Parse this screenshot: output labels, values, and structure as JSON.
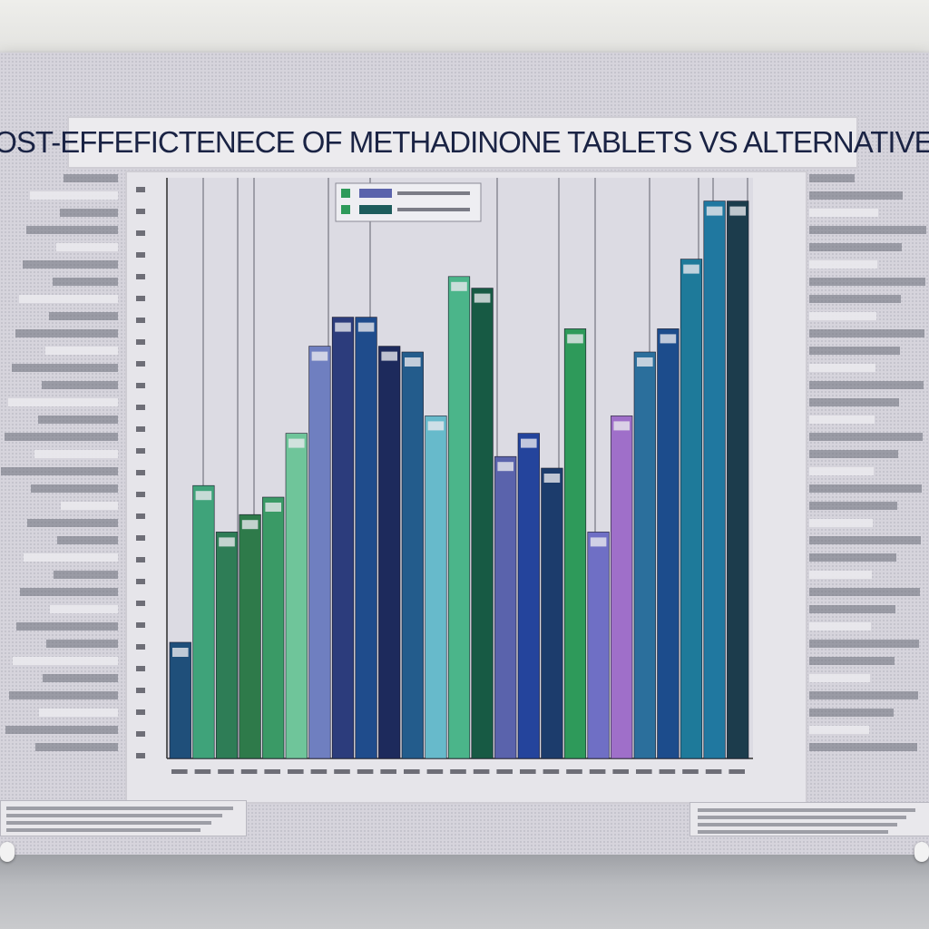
{
  "chart_data": {
    "type": "bar",
    "title": "COST-EFFEFICTENECE OF METHADINONE TABLETS VS ALTERNATIVES",
    "xlabel": "",
    "ylabel": "",
    "ylim": [
      0,
      100
    ],
    "grid": true,
    "legend": "top-center",
    "bars": [
      {
        "v": 20,
        "c": "#1f4f7a"
      },
      {
        "v": 47,
        "c": "#3fa37a"
      },
      {
        "v": 39,
        "c": "#2e7d56"
      },
      {
        "v": 42,
        "c": "#2e7a4a"
      },
      {
        "v": 45,
        "c": "#3a9a66"
      },
      {
        "v": 56,
        "c": "#6fc59a"
      },
      {
        "v": 71,
        "c": "#6f7fc0"
      },
      {
        "v": 76,
        "c": "#2c3c7c"
      },
      {
        "v": 76,
        "c": "#1f4c8c"
      },
      {
        "v": 71,
        "c": "#1d2a5c"
      },
      {
        "v": 70,
        "c": "#235c8c"
      },
      {
        "v": 59,
        "c": "#67bacb"
      },
      {
        "v": 83,
        "c": "#4bb58a"
      },
      {
        "v": 81,
        "c": "#175a44"
      },
      {
        "v": 52,
        "c": "#5a63ac"
      },
      {
        "v": 56,
        "c": "#24449c"
      },
      {
        "v": 50,
        "c": "#1c3c6c"
      },
      {
        "v": 74,
        "c": "#2e9a5a"
      },
      {
        "v": 39,
        "c": "#6f6fc5"
      },
      {
        "v": 59,
        "c": "#9f6fc9"
      },
      {
        "v": 70,
        "c": "#2b6f9c"
      },
      {
        "v": 74,
        "c": "#1c4c8c"
      },
      {
        "v": 86,
        "c": "#1e7a9a"
      },
      {
        "v": 96,
        "c": "#2078a0"
      },
      {
        "v": 96,
        "c": "#1c3c4c"
      }
    ]
  }
}
